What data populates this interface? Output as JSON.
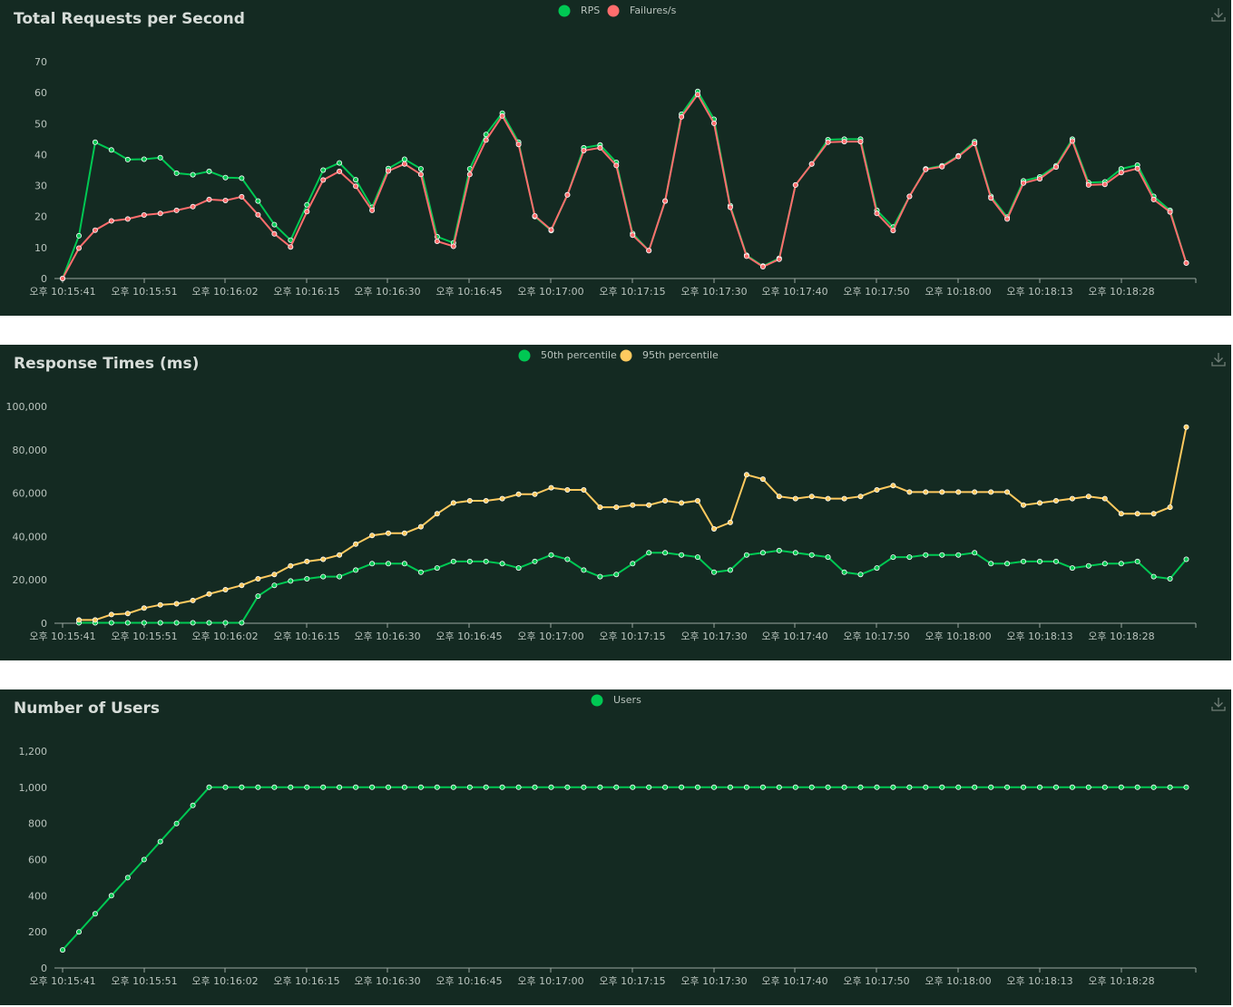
{
  "x_labels": [
    "오후 10:15:41",
    "오후 10:15:51",
    "오후 10:16:02",
    "오후 10:16:15",
    "오후 10:16:30",
    "오후 10:16:45",
    "오후 10:17:00",
    "오후 10:17:15",
    "오후 10:17:30",
    "오후 10:17:40",
    "오후 10:17:50",
    "오후 10:18:00",
    "오후 10:18:13",
    "오후 10:18:28"
  ],
  "panels": {
    "rps": {
      "title": "Total Requests per Second"
    },
    "rt": {
      "title": "Response Times (ms)"
    },
    "users": {
      "title": "Number of Users"
    }
  },
  "icons": {
    "download": "download-icon"
  },
  "colors": {
    "background": "#142a22",
    "green": "#00c853",
    "red": "#ff6d6d",
    "yellow": "#ffca5f",
    "axis": "#9aa7a0"
  },
  "chart_data": [
    {
      "type": "line",
      "title": "Total Requests per Second",
      "x_labels": [
        "오후 10:15:41",
        "오후 10:15:51",
        "오후 10:16:02",
        "오후 10:16:15",
        "오후 10:16:30",
        "오후 10:16:45",
        "오후 10:17:00",
        "오후 10:17:15",
        "오후 10:17:30",
        "오후 10:17:40",
        "오후 10:17:50",
        "오후 10:18:00",
        "오후 10:18:13",
        "오후 10:18:28"
      ],
      "yticks": [
        "0",
        "10",
        "20",
        "30",
        "40",
        "50",
        "60",
        "70"
      ],
      "ylim": [
        0,
        70
      ],
      "legend_position": "top-center",
      "series": [
        {
          "name": "RPS",
          "color": "#00c853",
          "values": [
            0,
            13.8,
            44,
            41.5,
            38.4,
            38.5,
            39,
            34,
            33.5,
            34.6,
            32.6,
            32.4,
            25,
            17.4,
            12.4,
            23.8,
            35,
            37.3,
            31.9,
            23,
            35.5,
            38.5,
            35.4,
            13.5,
            11.5,
            35.4,
            46.5,
            53.4,
            44,
            20,
            15.5,
            27,
            42.2,
            43.1,
            37.5,
            14.5,
            9,
            25,
            53,
            60.4,
            51.4,
            23.5,
            7.5,
            4,
            6.5,
            30.2,
            37,
            44.8,
            45,
            45,
            22,
            16.6,
            26.5,
            35.4,
            36.4,
            39.6,
            44.2,
            26.5,
            19.8,
            31.5,
            32.8,
            36.4,
            45,
            31,
            31.2,
            35.4,
            36.6,
            26.5,
            22,
            5
          ]
        },
        {
          "name": "Failures/s",
          "color": "#ff6d6d",
          "values": [
            0,
            9.8,
            15.6,
            18.6,
            19.2,
            20.5,
            21,
            22,
            23.2,
            25.5,
            25.2,
            26.4,
            20.6,
            14.4,
            10.2,
            21.6,
            31.8,
            34.6,
            29.8,
            22,
            34.7,
            37,
            33.6,
            12,
            10.4,
            33.6,
            44.7,
            52.5,
            43.3,
            20.2,
            15.7,
            27,
            41.3,
            42.2,
            36.5,
            14,
            9,
            25,
            52.2,
            59.4,
            50.1,
            23,
            7.2,
            3.8,
            6.2,
            30.2,
            37,
            44,
            44.2,
            44.2,
            21,
            15.5,
            26.5,
            35.2,
            36.1,
            39.4,
            43.6,
            26,
            19.2,
            30.8,
            32.2,
            36,
            44.4,
            30.2,
            30.4,
            34.2,
            35.5,
            25.5,
            21.5,
            5
          ]
        }
      ]
    },
    {
      "type": "line",
      "title": "Response Times (ms)",
      "x_labels": [
        "오후 10:15:41",
        "오후 10:15:51",
        "오후 10:16:02",
        "오후 10:16:15",
        "오후 10:16:30",
        "오후 10:16:45",
        "오후 10:17:00",
        "오후 10:17:15",
        "오후 10:17:30",
        "오후 10:17:40",
        "오후 10:17:50",
        "오후 10:18:00",
        "오후 10:18:13",
        "오후 10:18:28"
      ],
      "yticks": [
        "0",
        "20,000",
        "40,000",
        "60,000",
        "80,000",
        "100,000"
      ],
      "ylim": [
        0,
        100000
      ],
      "legend_position": "top-center",
      "series": [
        {
          "name": "50th percentile",
          "color": "#00c853",
          "values": [
            null,
            200,
            200,
            200,
            200,
            200,
            200,
            200,
            200,
            200,
            200,
            200,
            12500,
            17500,
            19500,
            20500,
            21500,
            21500,
            24500,
            27500,
            27500,
            27500,
            23500,
            25500,
            28500,
            28500,
            28500,
            27500,
            25500,
            28500,
            31500,
            29500,
            24500,
            21500,
            22500,
            27500,
            32500,
            32500,
            31500,
            30500,
            23500,
            24500,
            31500,
            32500,
            33500,
            32500,
            31500,
            30500,
            23500,
            22500,
            25500,
            30500,
            30500,
            31500,
            31500,
            31500,
            32500,
            27500,
            27500,
            28500,
            28500,
            28500,
            25500,
            26500,
            27500,
            27500,
            28500,
            21500,
            20500,
            29500
          ]
        },
        {
          "name": "95th percentile",
          "color": "#ffca5f",
          "values": [
            null,
            1500,
            1500,
            4000,
            4500,
            7000,
            8500,
            9000,
            10500,
            13500,
            15500,
            17500,
            20500,
            22500,
            26500,
            28500,
            29500,
            31500,
            36500,
            40500,
            41500,
            41500,
            44500,
            50500,
            55500,
            56500,
            56500,
            57500,
            59500,
            59500,
            62500,
            61500,
            61500,
            53500,
            53500,
            54500,
            54500,
            56500,
            55500,
            56500,
            43500,
            46500,
            68500,
            66500,
            58500,
            57500,
            58500,
            57500,
            57500,
            58500,
            61500,
            63500,
            60500,
            60500,
            60500,
            60500,
            60500,
            60500,
            60500,
            54500,
            55500,
            56500,
            57500,
            58500,
            57500,
            50500,
            50500,
            50500,
            53500,
            90500
          ]
        }
      ]
    },
    {
      "type": "line",
      "title": "Number of Users",
      "x_labels": [
        "오후 10:15:41",
        "오후 10:15:51",
        "오후 10:16:02",
        "오후 10:16:15",
        "오후 10:16:30",
        "오후 10:16:45",
        "오후 10:17:00",
        "오후 10:17:15",
        "오후 10:17:30",
        "오후 10:17:40",
        "오후 10:17:50",
        "오후 10:18:00",
        "오후 10:18:13",
        "오후 10:18:28"
      ],
      "yticks": [
        "0",
        "200",
        "400",
        "600",
        "800",
        "1,000",
        "1,200"
      ],
      "ylim": [
        0,
        1200
      ],
      "legend_position": "top-center",
      "series": [
        {
          "name": "Users",
          "color": "#00c853",
          "values": [
            100,
            200,
            300,
            400,
            500,
            600,
            700,
            800,
            900,
            1000,
            1000,
            1000,
            1000,
            1000,
            1000,
            1000,
            1000,
            1000,
            1000,
            1000,
            1000,
            1000,
            1000,
            1000,
            1000,
            1000,
            1000,
            1000,
            1000,
            1000,
            1000,
            1000,
            1000,
            1000,
            1000,
            1000,
            1000,
            1000,
            1000,
            1000,
            1000,
            1000,
            1000,
            1000,
            1000,
            1000,
            1000,
            1000,
            1000,
            1000,
            1000,
            1000,
            1000,
            1000,
            1000,
            1000,
            1000,
            1000,
            1000,
            1000,
            1000,
            1000,
            1000,
            1000,
            1000,
            1000,
            1000,
            1000,
            1000,
            1000
          ]
        }
      ]
    }
  ]
}
